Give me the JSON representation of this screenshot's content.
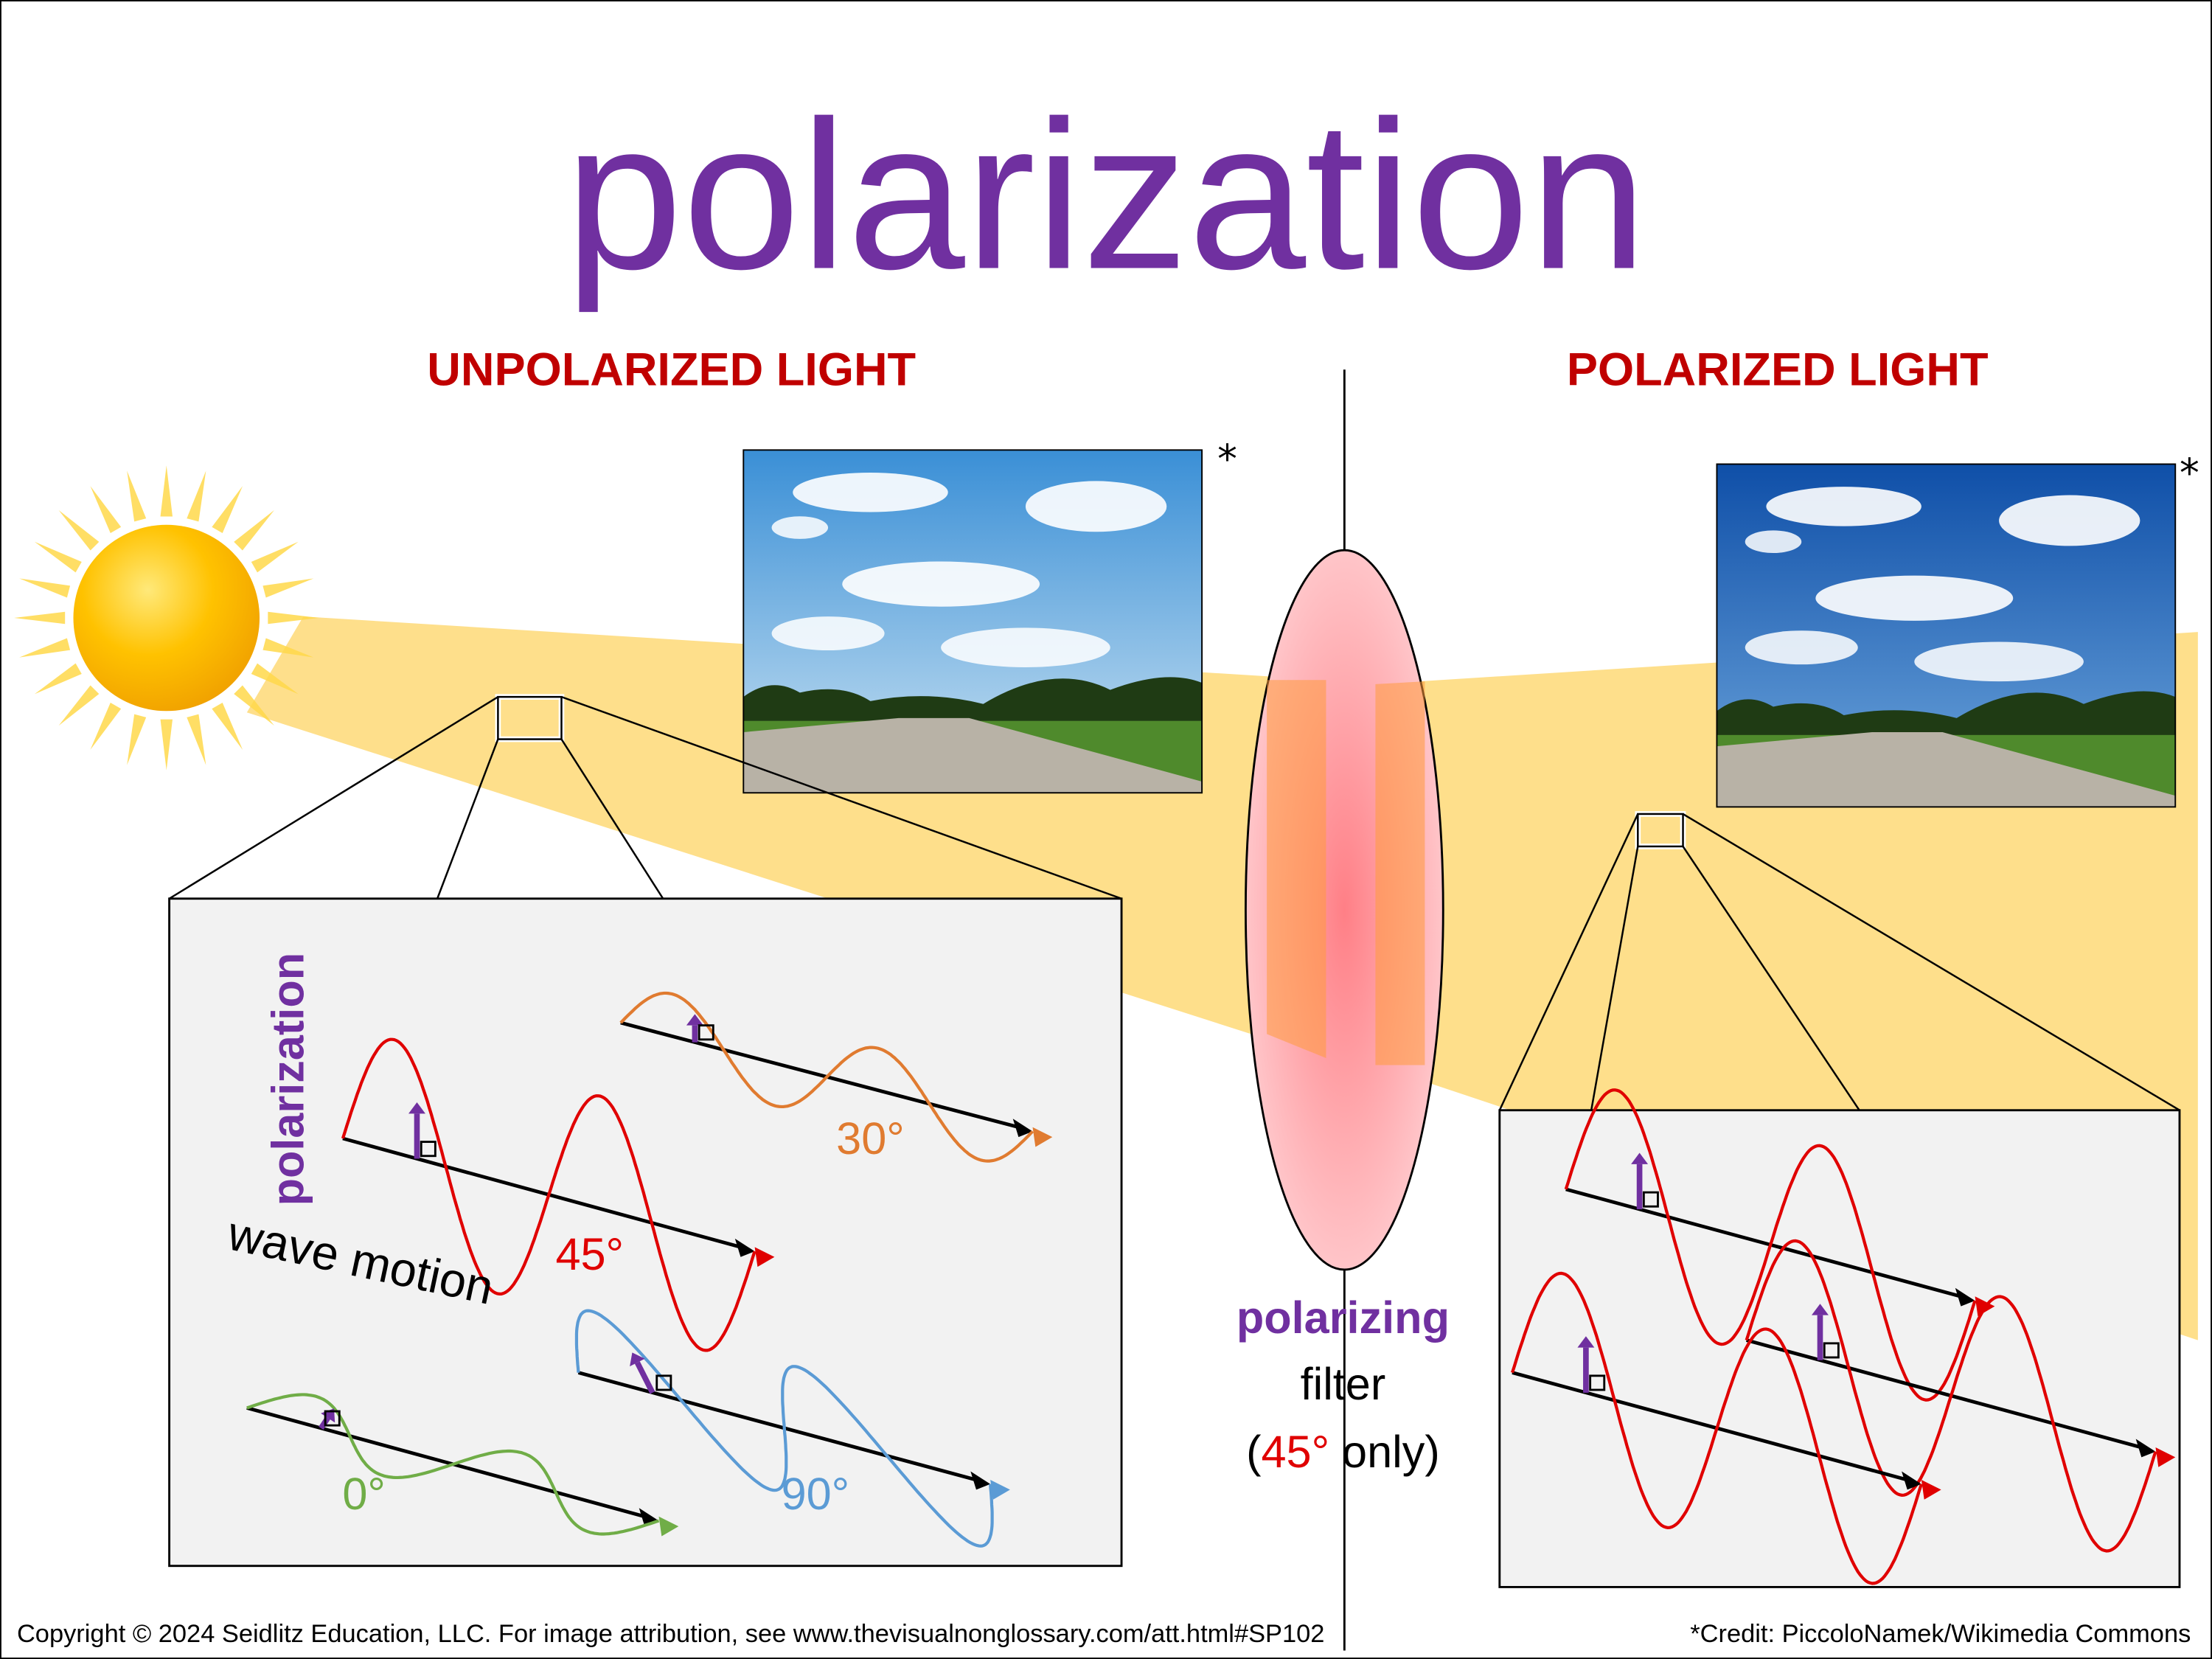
{
  "title": "polarization",
  "headings": {
    "left": "UNPOLARIZED LIGHT",
    "right": "POLARIZED LIGHT"
  },
  "photos": {
    "left_mark": "*",
    "right_mark": "*"
  },
  "inset_left": {
    "axis_label": "polarization",
    "motion_label": "wave motion",
    "angles": {
      "a30": "30°",
      "a45": "45°",
      "a0": "0°",
      "a90": "90°"
    }
  },
  "filter": {
    "line1": "polarizing",
    "line2": "filter",
    "open": "(",
    "angle": "45°",
    "close": " only)"
  },
  "footer": {
    "copyright": "Copyright © 2024 Seidlitz Education, LLC.  For image attribution, see www.thevisualnonglossary.com/att.html#SP102",
    "credit": "*Credit: PiccoloNamek/Wikimedia Commons"
  }
}
